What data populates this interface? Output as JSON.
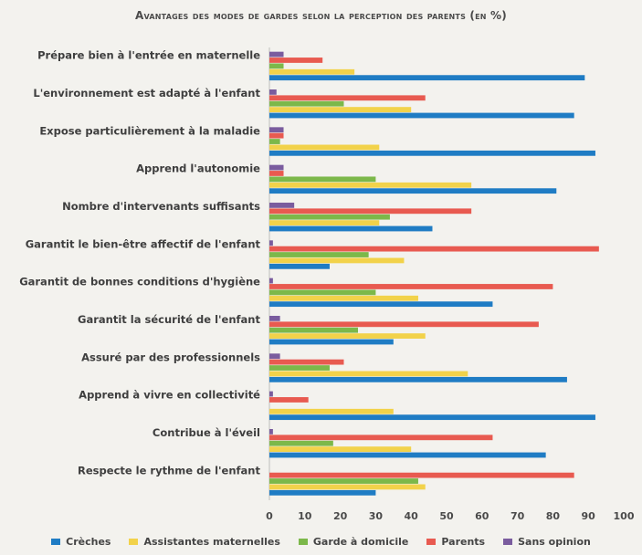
{
  "chart_data": {
    "type": "bar",
    "orientation": "horizontal",
    "title": "Avantages des modes de gardes selon la perception des parents (en %)",
    "categories": [
      "Prépare bien à l'entrée en maternelle",
      "L'environnement est adapté à l'enfant",
      "Expose particulièrement à la maladie",
      "Apprend l'autonomie",
      "Nombre d'intervenants suffisants",
      "Garantit le bien-être affectif de l'enfant",
      "Garantit de bonnes conditions d'hygiène",
      "Garantit la sécurité de l'enfant",
      "Assuré par des professionnels",
      "Apprend à vivre en collectivité",
      "Contribue à l'éveil",
      "Respecte le rythme de l'enfant"
    ],
    "series": [
      {
        "name": "Sans opinion",
        "color": "#7a5c9e",
        "values": [
          4,
          2,
          4,
          4,
          7,
          1,
          1,
          3,
          3,
          1,
          1,
          0
        ]
      },
      {
        "name": "Parents",
        "color": "#e85a50",
        "values": [
          15,
          44,
          4,
          4,
          57,
          93,
          80,
          76,
          21,
          11,
          63,
          86
        ]
      },
      {
        "name": "Garde à domicile",
        "color": "#7cb84a",
        "values": [
          4,
          21,
          3,
          30,
          34,
          28,
          30,
          25,
          17,
          0,
          18,
          42
        ]
      },
      {
        "name": "Assistantes maternelles",
        "color": "#f2d24a",
        "values": [
          24,
          40,
          31,
          57,
          31,
          38,
          42,
          44,
          56,
          35,
          40,
          44
        ]
      },
      {
        "name": "Crèches",
        "color": "#1f7cc4",
        "values": [
          89,
          86,
          92,
          81,
          46,
          17,
          63,
          35,
          84,
          92,
          78,
          30
        ]
      }
    ],
    "legend_order": [
      "Crèches",
      "Assistantes maternelles",
      "Garde à domicile",
      "Parents",
      "Sans opinion"
    ],
    "x_ticks": [
      0,
      10,
      20,
      30,
      40,
      50,
      60,
      70,
      80,
      90,
      100
    ],
    "xlim": [
      0,
      100
    ],
    "grid": false,
    "legend_position": "bottom"
  }
}
